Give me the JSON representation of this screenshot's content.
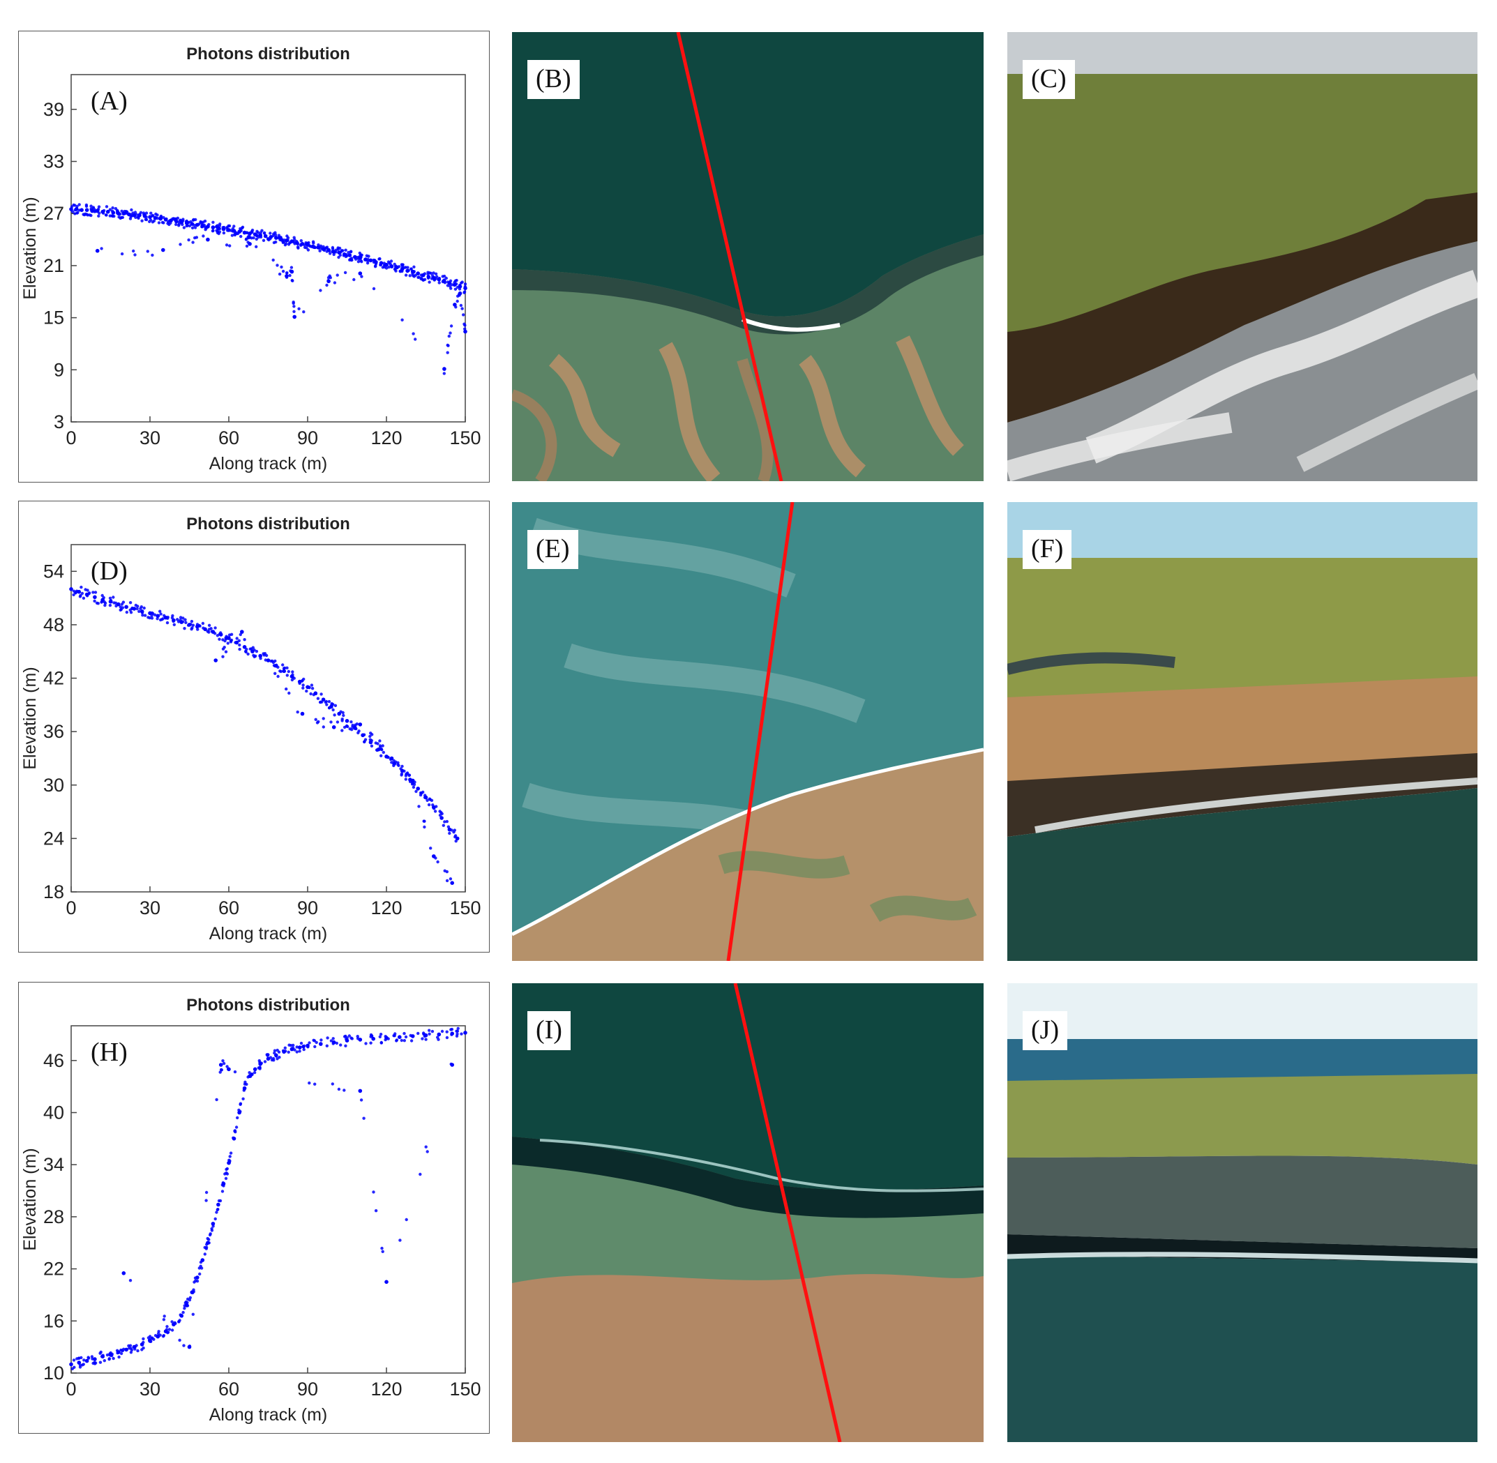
{
  "chart_data": [
    {
      "type": "scatter",
      "panel_label": "(A)",
      "title": "Photons distribution",
      "xlabel": "Along track (m)",
      "ylabel": "Elevation (m)",
      "xlim": [
        0,
        150
      ],
      "ylim": [
        3,
        43
      ],
      "xticks": [
        0,
        30,
        60,
        90,
        120,
        150
      ],
      "yticks": [
        3,
        9,
        15,
        21,
        27,
        33,
        39
      ],
      "marker_color": "#0000ff",
      "x": [
        0,
        2,
        4,
        6,
        8,
        10,
        12,
        14,
        16,
        18,
        20,
        22,
        24,
        26,
        28,
        30,
        32,
        34,
        36,
        38,
        40,
        42,
        44,
        46,
        48,
        50,
        52,
        54,
        56,
        58,
        60,
        62,
        64,
        66,
        68,
        70,
        72,
        74,
        76,
        78,
        80,
        82,
        84,
        86,
        88,
        90,
        92,
        94,
        96,
        98,
        100,
        102,
        104,
        106,
        108,
        110,
        112,
        114,
        116,
        118,
        120,
        122,
        124,
        126,
        128,
        130,
        132,
        134,
        136,
        138,
        140,
        142,
        144,
        146,
        148,
        150,
        10,
        35,
        52,
        68,
        82,
        84,
        85,
        98,
        110,
        142,
        146,
        148,
        150
      ],
      "y": [
        27.5,
        27.5,
        27.4,
        27.4,
        27.3,
        27.3,
        27.2,
        27.2,
        27.1,
        27.0,
        27.0,
        26.9,
        26.8,
        26.8,
        26.7,
        26.6,
        26.5,
        26.4,
        26.3,
        26.2,
        26.1,
        26.0,
        25.9,
        25.8,
        25.7,
        25.6,
        25.5,
        25.4,
        25.3,
        25.2,
        25.1,
        25.0,
        24.9,
        24.8,
        24.7,
        24.6,
        24.5,
        24.4,
        24.3,
        24.2,
        24.0,
        23.9,
        23.8,
        23.6,
        23.5,
        23.4,
        23.2,
        23.1,
        22.9,
        22.8,
        22.6,
        22.5,
        22.3,
        22.2,
        22.0,
        21.9,
        21.7,
        21.6,
        21.4,
        21.3,
        21.1,
        20.9,
        20.8,
        20.6,
        20.4,
        20.3,
        20.1,
        19.9,
        19.7,
        19.6,
        19.4,
        19.2,
        19.0,
        18.8,
        18.6,
        18.4,
        22.7,
        22.8,
        24.0,
        23.5,
        19.8,
        20.3,
        15.1,
        19.2,
        20.1,
        9.1,
        16.5,
        17.8,
        13.4
      ]
    },
    {
      "type": "scatter",
      "panel_label": "(D)",
      "title": "Photons distribution",
      "xlabel": "Along track (m)",
      "ylabel": "Elevation (m)",
      "xlim": [
        0,
        150
      ],
      "ylim": [
        18,
        57
      ],
      "xticks": [
        0,
        30,
        60,
        90,
        120,
        150
      ],
      "yticks": [
        18,
        24,
        30,
        36,
        42,
        48,
        54
      ],
      "marker_color": "#0000ff",
      "x": [
        0,
        3,
        6,
        9,
        12,
        15,
        18,
        21,
        24,
        27,
        30,
        33,
        36,
        39,
        42,
        45,
        48,
        51,
        54,
        57,
        60,
        63,
        66,
        69,
        72,
        75,
        78,
        81,
        84,
        87,
        90,
        93,
        96,
        99,
        102,
        105,
        108,
        111,
        114,
        117,
        120,
        123,
        126,
        129,
        132,
        135,
        138,
        141,
        144,
        147,
        55,
        65,
        88,
        100,
        110,
        122,
        130,
        138,
        145
      ],
      "y": [
        52.0,
        51.7,
        51.4,
        51.1,
        50.8,
        50.6,
        50.3,
        50.0,
        49.8,
        49.5,
        49.3,
        49.0,
        48.8,
        48.5,
        48.3,
        48.0,
        47.8,
        47.5,
        47.2,
        46.9,
        46.5,
        46.0,
        45.5,
        45.0,
        44.5,
        44.0,
        43.4,
        42.8,
        42.2,
        41.6,
        41.0,
        40.3,
        39.6,
        38.8,
        38.0,
        37.2,
        36.4,
        35.6,
        34.8,
        34.0,
        33.2,
        32.4,
        31.6,
        30.6,
        29.6,
        28.6,
        27.5,
        26.3,
        25.0,
        24.0,
        44.0,
        47.2,
        38.0,
        36.5,
        36.8,
        33.0,
        30.5,
        22.0,
        19.0
      ]
    },
    {
      "type": "scatter",
      "panel_label": "(H)",
      "title": "Photons distribution",
      "xlabel": "Along track (m)",
      "ylabel": "Elevation (m)",
      "xlim": [
        0,
        150
      ],
      "ylim": [
        10,
        50
      ],
      "xticks": [
        0,
        30,
        60,
        90,
        120,
        150
      ],
      "yticks": [
        10,
        16,
        22,
        28,
        34,
        40,
        46
      ],
      "marker_color": "#0000ff",
      "x": [
        0,
        3,
        6,
        9,
        12,
        15,
        18,
        21,
        24,
        27,
        30,
        33,
        36,
        39,
        42,
        44,
        46,
        48,
        50,
        52,
        54,
        56,
        58,
        60,
        62,
        64,
        66,
        68,
        70,
        72,
        75,
        78,
        81,
        84,
        87,
        90,
        95,
        100,
        105,
        110,
        115,
        120,
        125,
        130,
        135,
        140,
        145,
        150,
        20,
        45,
        57,
        60,
        110,
        120,
        145
      ],
      "y": [
        11.0,
        11.2,
        11.4,
        11.6,
        11.9,
        12.1,
        12.4,
        12.7,
        13.0,
        13.3,
        13.7,
        14.2,
        14.8,
        15.6,
        16.6,
        17.8,
        19.3,
        21.0,
        23.0,
        25.0,
        27.2,
        29.4,
        31.8,
        34.2,
        37.0,
        40.0,
        42.8,
        44.2,
        45.0,
        45.6,
        46.2,
        46.6,
        47.0,
        47.3,
        47.5,
        47.7,
        47.9,
        48.1,
        48.3,
        48.4,
        48.5,
        48.6,
        48.7,
        48.8,
        48.9,
        49.0,
        49.1,
        49.2,
        21.5,
        13.0,
        45.5,
        45.0,
        42.5,
        20.5,
        45.5
      ]
    }
  ],
  "panels": [
    {
      "label": "(B)"
    },
    {
      "label": "(C)"
    },
    {
      "label": "(E)"
    },
    {
      "label": "(F)"
    },
    {
      "label": "(I)"
    },
    {
      "label": "(J)"
    }
  ]
}
